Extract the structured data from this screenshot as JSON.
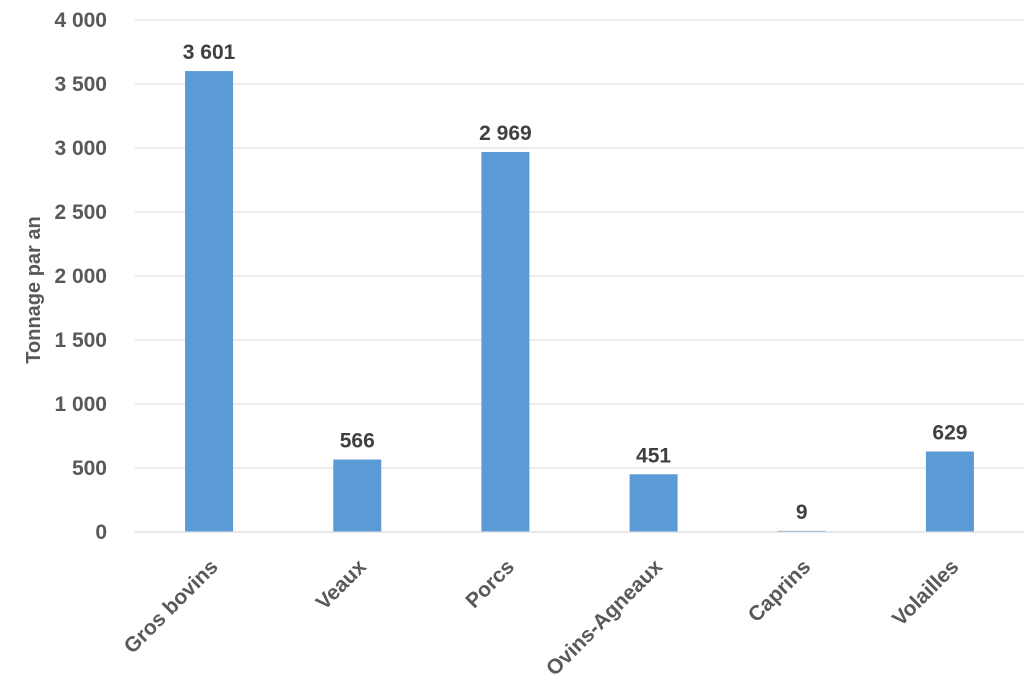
{
  "chart_data": {
    "type": "bar",
    "title": "",
    "xlabel": "",
    "ylabel": "Tonnage par an",
    "categories": [
      "Gros bovins",
      "Veaux",
      "Porcs",
      "Ovins-Agneaux",
      "Caprins",
      "Volailles"
    ],
    "values": [
      3601,
      566,
      2969,
      451,
      9,
      629
    ],
    "value_labels": [
      "3 601",
      "566",
      "2 969",
      "451",
      "9",
      "629"
    ],
    "ylim": [
      0,
      4000
    ],
    "yticks": [
      0,
      500,
      1000,
      1500,
      2000,
      2500,
      3000,
      3500,
      4000
    ],
    "ytick_labels": [
      "0",
      "500",
      "1 000",
      "1 500",
      "2 000",
      "2 500",
      "3 000",
      "3 500",
      "4 000"
    ],
    "bar_color": "#5b9bd5",
    "grid": true,
    "legend": "none"
  }
}
